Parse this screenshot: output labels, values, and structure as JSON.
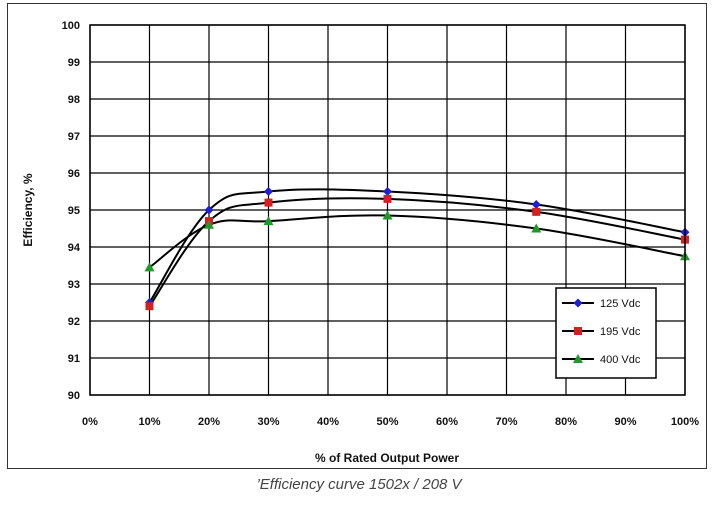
{
  "chart_data": {
    "type": "line",
    "xlabel": "% of Rated Output Power",
    "ylabel": "Efficiency, %",
    "x_ticks": [
      "0%",
      "10%",
      "20%",
      "30%",
      "40%",
      "50%",
      "60%",
      "70%",
      "80%",
      "90%",
      "100%"
    ],
    "y_ticks": [
      "90",
      "91",
      "92",
      "93",
      "94",
      "95",
      "96",
      "97",
      "98",
      "99",
      "100"
    ],
    "xlim": [
      0,
      100
    ],
    "ylim": [
      90,
      100
    ],
    "grid": true,
    "legend_position": "bottom-right",
    "series": [
      {
        "name": "125 Vdc",
        "color": "#1f1fd6",
        "marker": "diamond",
        "x": [
          10,
          20,
          30,
          50,
          75,
          100
        ],
        "y": [
          92.5,
          95.0,
          95.5,
          95.5,
          95.15,
          94.4
        ]
      },
      {
        "name": "195 Vdc",
        "color": "#d61f1f",
        "marker": "square",
        "x": [
          10,
          20,
          30,
          50,
          75,
          100
        ],
        "y": [
          92.4,
          94.7,
          95.2,
          95.3,
          94.95,
          94.2
        ]
      },
      {
        "name": "400 Vdc",
        "color": "#1f9a2a",
        "marker": "triangle",
        "x": [
          10,
          20,
          30,
          50,
          75,
          100
        ],
        "y": [
          93.45,
          94.6,
          94.7,
          94.85,
          94.5,
          93.75
        ]
      }
    ]
  },
  "caption": "Efficiency curve 1502x / 208 V"
}
